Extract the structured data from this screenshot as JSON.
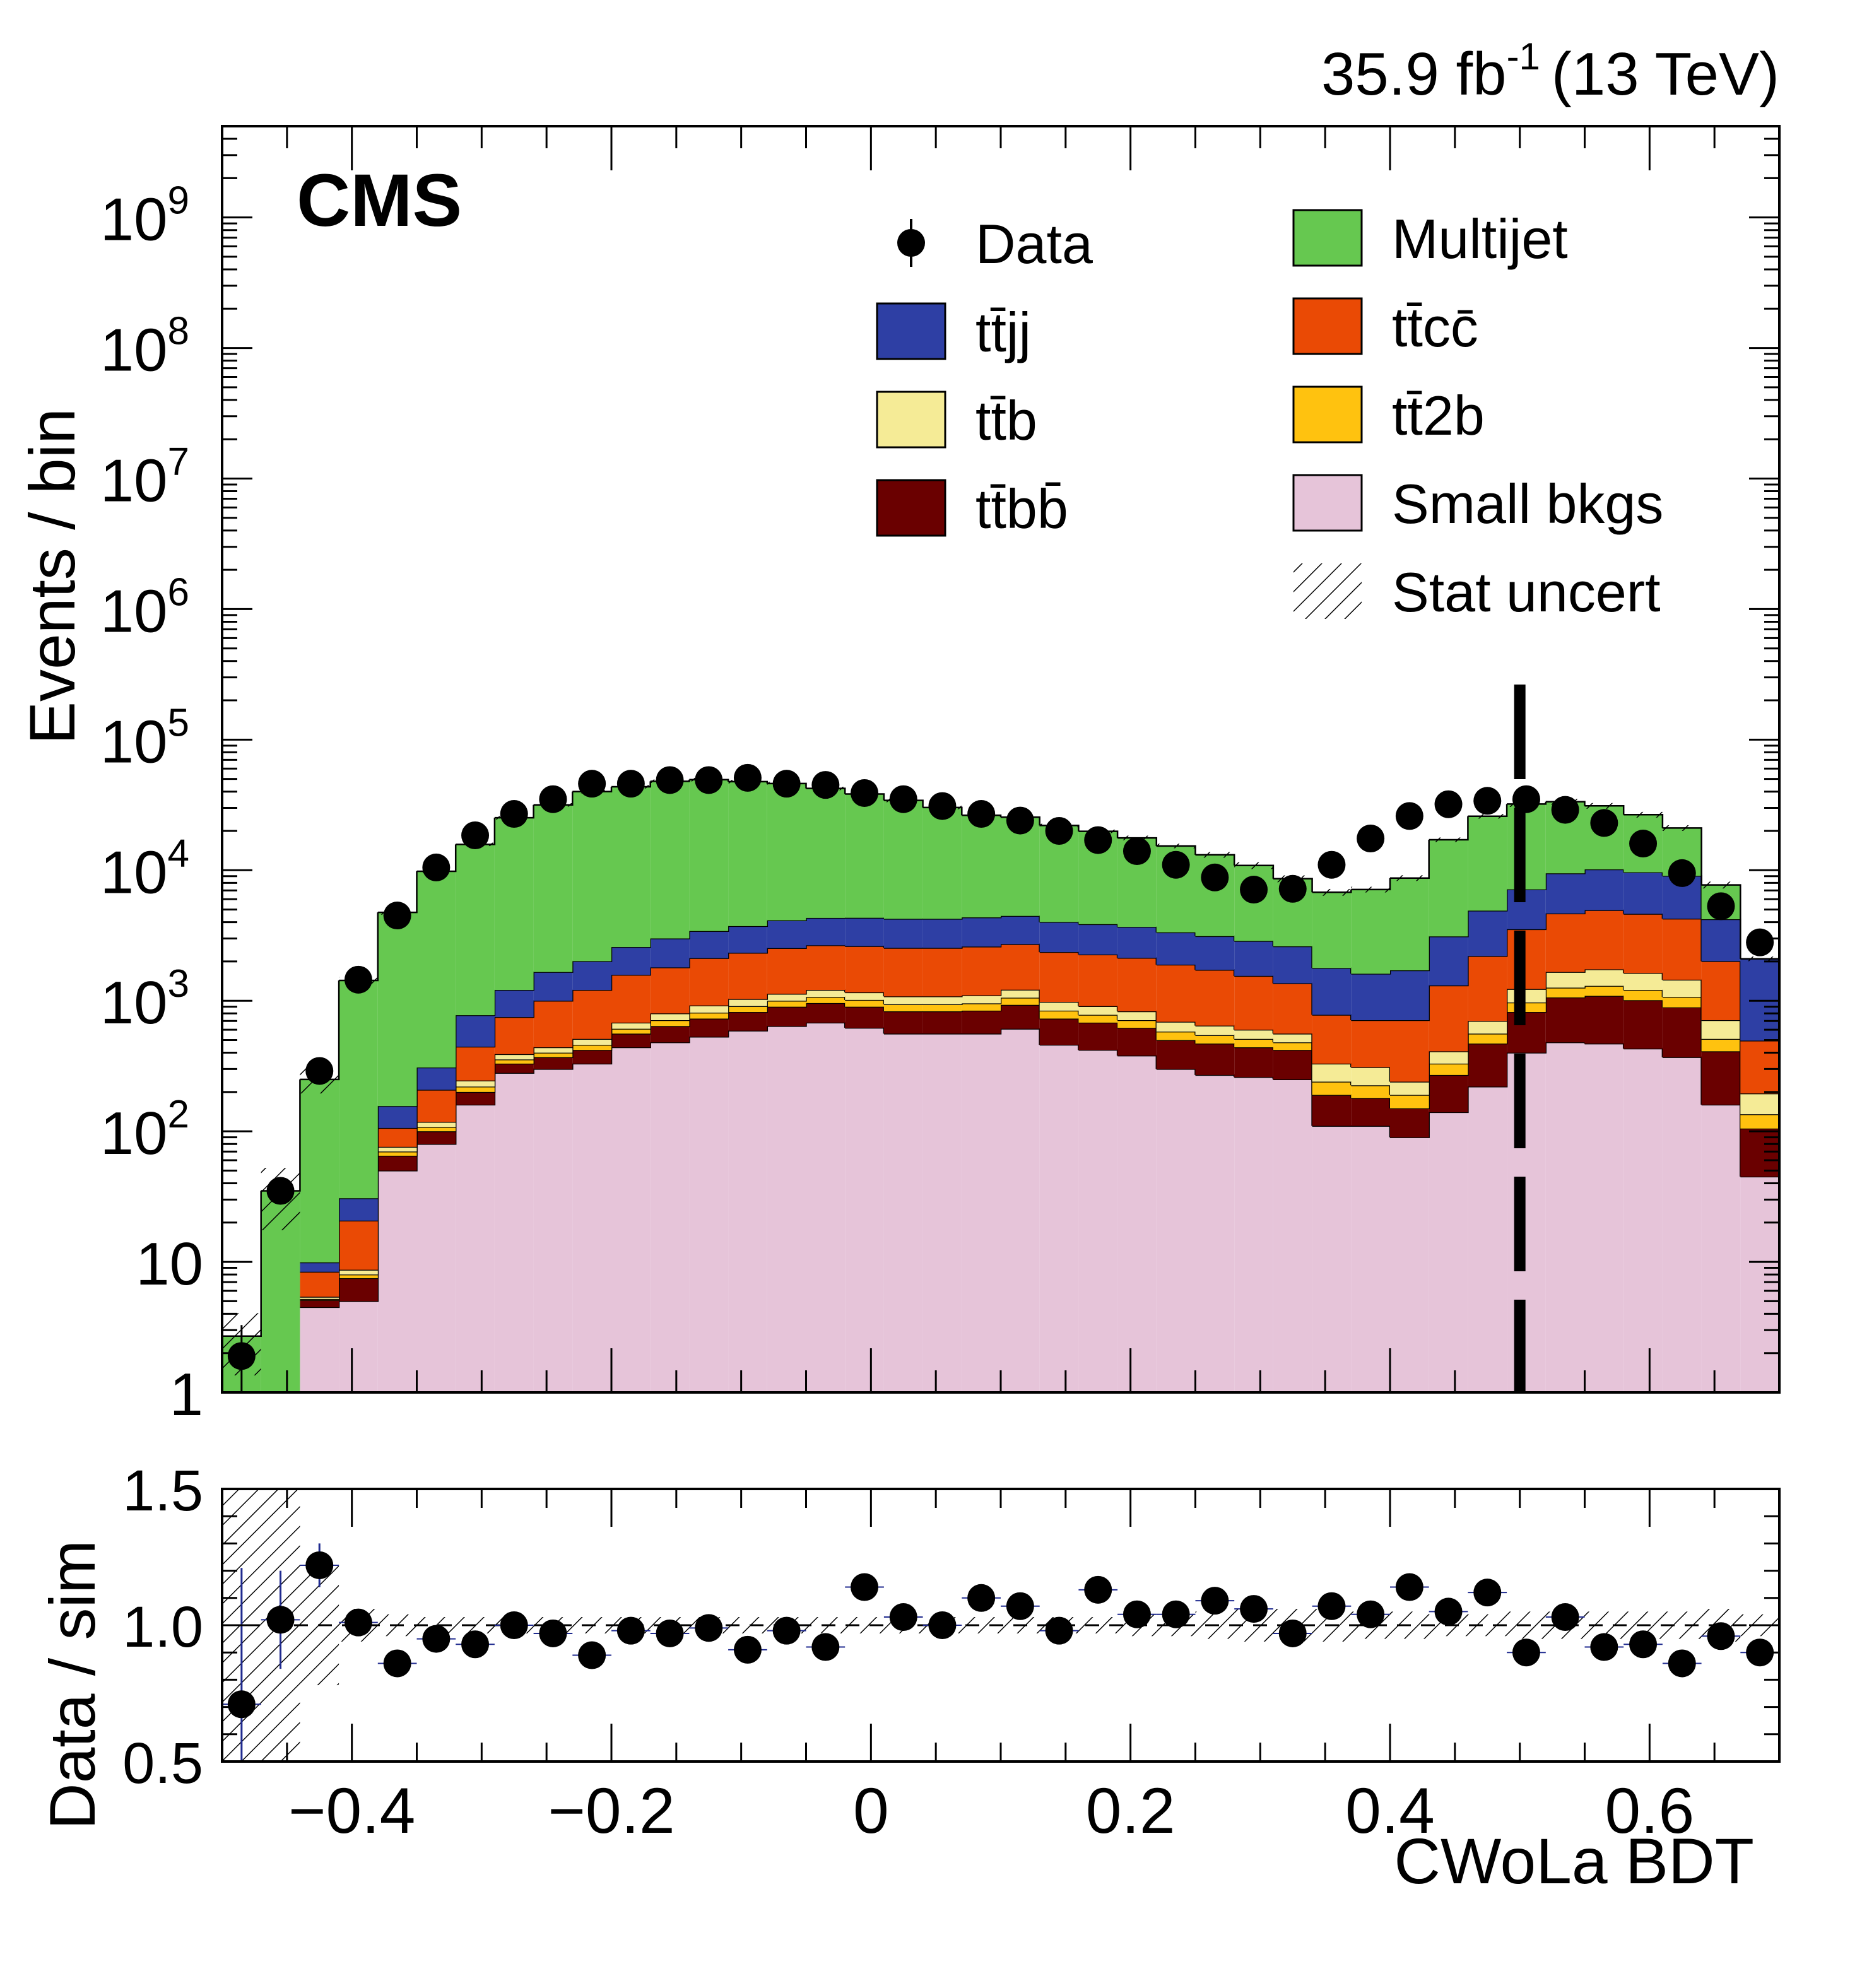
{
  "chart_data": {
    "type": "stacked-histogram-with-ratio",
    "title": "",
    "lumi_label": "35.9 fb",
    "lumi_sup": "-1",
    "energy_label": "(13 TeV)",
    "experiment_label": "CMS",
    "xlabel": "CWoLa BDT",
    "ylabel_main": "Events / bin",
    "ylabel_ratio": "Data / sim",
    "xlim": [
      -0.5,
      0.7
    ],
    "ylim_main": [
      1,
      5000000000
    ],
    "ylim_ratio": [
      0.5,
      1.5
    ],
    "yscale_main": "log",
    "bin_width": 0.03,
    "cut_x": 0.5,
    "x_ticks": [
      {
        "value": -0.4,
        "label": "−0.4"
      },
      {
        "value": -0.2,
        "label": "−0.2"
      },
      {
        "value": 0,
        "label": "0"
      },
      {
        "value": 0.2,
        "label": "0.2"
      },
      {
        "value": 0.4,
        "label": "0.4"
      },
      {
        "value": 0.6,
        "label": "0.6"
      }
    ],
    "y_ticks_main": [
      {
        "value": 1,
        "base": "1",
        "exp": ""
      },
      {
        "value": 10,
        "base": "10",
        "exp": ""
      },
      {
        "value": 100,
        "base": "10",
        "exp": "2"
      },
      {
        "value": 1000,
        "base": "10",
        "exp": "3"
      },
      {
        "value": 10000,
        "base": "10",
        "exp": "4"
      },
      {
        "value": 100000,
        "base": "10",
        "exp": "5"
      },
      {
        "value": 1000000,
        "base": "10",
        "exp": "6"
      },
      {
        "value": 10000000,
        "base": "10",
        "exp": "7"
      },
      {
        "value": 100000000,
        "base": "10",
        "exp": "8"
      },
      {
        "value": 1000000000,
        "base": "10",
        "exp": "9"
      }
    ],
    "y_ticks_ratio": [
      {
        "value": 0.5,
        "label": "0.5"
      },
      {
        "value": 1.0,
        "label": "1.0"
      },
      {
        "value": 1.5,
        "label": "1.5"
      }
    ],
    "bin_edges": [
      -0.5,
      -0.47,
      -0.44,
      -0.41,
      -0.38,
      -0.35,
      -0.32,
      -0.29,
      -0.26,
      -0.23,
      -0.2,
      -0.17,
      -0.14,
      -0.11,
      -0.08,
      -0.05,
      -0.02,
      0.01,
      0.04,
      0.07,
      0.1,
      0.13,
      0.16,
      0.19,
      0.22,
      0.25,
      0.28,
      0.31,
      0.34,
      0.37,
      0.4,
      0.43,
      0.46,
      0.49,
      0.52,
      0.55,
      0.58,
      0.61,
      0.64,
      0.67,
      0.7
    ],
    "stack_order": [
      "small",
      "ttbb",
      "tt2b",
      "ttb",
      "ttcc",
      "ttjj",
      "multijet"
    ],
    "series": [
      {
        "key": "small",
        "name": "Small bkgs",
        "color": "#e6c4d9",
        "values": [
          0,
          0,
          4.5,
          5,
          50,
          80,
          160,
          280,
          300,
          330,
          440,
          480,
          530,
          590,
          640,
          680,
          620,
          560,
          560,
          560,
          610,
          460,
          420,
          380,
          300,
          270,
          260,
          250,
          110,
          110,
          90,
          140,
          220,
          400,
          480,
          470,
          430,
          370,
          160,
          45
        ]
      },
      {
        "key": "ttbb",
        "name": "tt̄bb̄",
        "color": "#6a0000",
        "values": [
          0,
          0,
          0.6,
          2.5,
          15,
          20,
          40,
          50,
          70,
          90,
          120,
          160,
          200,
          230,
          260,
          280,
          280,
          270,
          270,
          280,
          320,
          270,
          260,
          240,
          200,
          200,
          180,
          170,
          80,
          70,
          60,
          130,
          250,
          420,
          580,
          620,
          580,
          520,
          250,
          60
        ]
      },
      {
        "key": "tt2b",
        "name": "tt̄2b",
        "color": "#ffc20f",
        "values": [
          0,
          0,
          0.1,
          0.5,
          5,
          8,
          20,
          25,
          30,
          40,
          50,
          70,
          80,
          90,
          100,
          110,
          115,
          110,
          110,
          115,
          125,
          110,
          100,
          90,
          80,
          75,
          70,
          60,
          50,
          45,
          40,
          60,
          90,
          150,
          200,
          210,
          200,
          180,
          100,
          30
        ]
      },
      {
        "key": "ttb",
        "name": "tt̄b",
        "color": "#f5eb96",
        "values": [
          0,
          0,
          0.2,
          0.7,
          6,
          10,
          25,
          35,
          40,
          50,
          70,
          90,
          110,
          120,
          130,
          140,
          145,
          140,
          140,
          145,
          160,
          140,
          130,
          120,
          110,
          100,
          90,
          80,
          90,
          85,
          50,
          80,
          140,
          260,
          400,
          440,
          420,
          380,
          200,
          60
        ]
      },
      {
        "key": "ttcc",
        "name": "tt̄cc̄",
        "color": "#ea4a05",
        "values": [
          0,
          0,
          3,
          12,
          30,
          90,
          200,
          360,
          560,
          700,
          900,
          1000,
          1200,
          1300,
          1400,
          1450,
          1460,
          1460,
          1460,
          1500,
          1500,
          1380,
          1350,
          1300,
          1200,
          1080,
          950,
          800,
          450,
          400,
          470,
          900,
          1500,
          2300,
          3000,
          3200,
          3000,
          2800,
          1300,
          300
        ]
      },
      {
        "key": "ttjj",
        "name": "tt̄jj",
        "color": "#2e3fa4",
        "values": [
          0,
          0,
          1.5,
          10,
          50,
          100,
          330,
          460,
          660,
          800,
          1000,
          1200,
          1300,
          1400,
          1600,
          1650,
          1700,
          1700,
          1700,
          1750,
          1750,
          1650,
          1600,
          1550,
          1450,
          1400,
          1320,
          1250,
          1000,
          900,
          1000,
          1800,
          2700,
          3600,
          4800,
          5200,
          5000,
          4800,
          2200,
          1600
        ]
      },
      {
        "key": "multijet",
        "name": "Multijet",
        "color": "#66c850",
        "values": [
          2.7,
          35,
          240,
          1400,
          4600,
          9500,
          15000,
          24000,
          30000,
          38000,
          41000,
          45000,
          46000,
          44000,
          42000,
          38000,
          34000,
          30000,
          26000,
          22000,
          21000,
          18000,
          16000,
          14000,
          12000,
          10000,
          8000,
          6000,
          5000,
          5500,
          7000,
          14000,
          21000,
          25000,
          24000,
          21000,
          17000,
          12000,
          3500,
          0
        ]
      }
    ],
    "data": {
      "name": "Data",
      "x": [
        -0.485,
        -0.455,
        -0.425,
        -0.395,
        -0.365,
        -0.335,
        -0.305,
        -0.275,
        -0.245,
        -0.215,
        -0.185,
        -0.155,
        -0.125,
        -0.095,
        -0.065,
        -0.035,
        -0.005,
        0.025,
        0.055,
        0.085,
        0.115,
        0.145,
        0.175,
        0.205,
        0.235,
        0.265,
        0.295,
        0.325,
        0.355,
        0.385,
        0.415,
        0.445,
        0.475,
        0.505,
        0.535,
        0.565,
        0.595,
        0.625,
        0.655,
        0.685
      ],
      "values": [
        1.9,
        35,
        290,
        1450,
        4500,
        10500,
        18500,
        27000,
        35000,
        46000,
        46000,
        49000,
        49000,
        51000,
        46000,
        45000,
        39000,
        35000,
        31000,
        27000,
        24000,
        20000,
        17000,
        14000,
        11000,
        8800,
        7100,
        7200,
        11000,
        17500,
        26000,
        32000,
        34000,
        35000,
        29000,
        23000,
        16000,
        9500,
        5300,
        2800
      ]
    },
    "ratio": {
      "x": [
        -0.485,
        -0.455,
        -0.425,
        -0.395,
        -0.365,
        -0.335,
        -0.305,
        -0.275,
        -0.245,
        -0.215,
        -0.185,
        -0.155,
        -0.125,
        -0.095,
        -0.065,
        -0.035,
        -0.005,
        0.025,
        0.055,
        0.085,
        0.115,
        0.145,
        0.175,
        0.205,
        0.235,
        0.265,
        0.295,
        0.325,
        0.355,
        0.385,
        0.415,
        0.445,
        0.475,
        0.505,
        0.535,
        0.565,
        0.595,
        0.625,
        0.655,
        0.685
      ],
      "values": [
        0.71,
        1.02,
        1.22,
        1.01,
        0.86,
        0.95,
        0.93,
        1.0,
        0.97,
        0.89,
        0.98,
        0.97,
        0.99,
        0.91,
        0.98,
        0.92,
        1.14,
        1.03,
        1.0,
        1.1,
        1.07,
        0.98,
        1.13,
        1.04,
        1.04,
        1.09,
        1.06,
        0.97,
        1.07,
        1.04,
        1.14,
        1.05,
        1.12,
        0.9,
        1.03,
        0.92,
        0.93,
        0.86,
        0.96,
        0.9
      ],
      "errors": [
        0.5,
        0.18,
        0.08,
        0.03,
        0.02,
        0.02,
        0.01,
        0.01,
        0.01,
        0.01,
        0.01,
        0.01,
        0.01,
        0.01,
        0.01,
        0.01,
        0.01,
        0.01,
        0.01,
        0.01,
        0.01,
        0.01,
        0.01,
        0.01,
        0.01,
        0.01,
        0.01,
        0.01,
        0.01,
        0.01,
        0.01,
        0.01,
        0.01,
        0.01,
        0.01,
        0.01,
        0.01,
        0.01,
        0.01,
        0.01
      ],
      "stat_band": [
        0.5,
        0.5,
        0.22,
        0.06,
        0.04,
        0.03,
        0.03,
        0.03,
        0.03,
        0.03,
        0.03,
        0.03,
        0.03,
        0.03,
        0.03,
        0.03,
        0.03,
        0.03,
        0.03,
        0.03,
        0.03,
        0.03,
        0.03,
        0.04,
        0.04,
        0.05,
        0.06,
        0.06,
        0.06,
        0.05,
        0.05,
        0.04,
        0.04,
        0.05,
        0.05,
        0.05,
        0.05,
        0.05,
        0.06,
        0.04
      ]
    },
    "legend": {
      "position": "top-right",
      "entries": [
        {
          "key": "data",
          "label": "Data",
          "style": "marker"
        },
        {
          "key": "multijet",
          "label": "Multijet",
          "style": "box",
          "color": "#66c850"
        },
        {
          "key": "ttjj",
          "label": "tt̄jj",
          "style": "box",
          "color": "#2e3fa4"
        },
        {
          "key": "ttcc",
          "label": "tt̄cc̄",
          "style": "box",
          "color": "#ea4a05"
        },
        {
          "key": "ttb",
          "label": "tt̄b",
          "style": "box",
          "color": "#f5eb96"
        },
        {
          "key": "tt2b",
          "label": "tt̄2b",
          "style": "box",
          "color": "#ffc20f"
        },
        {
          "key": "ttbb",
          "label": "tt̄bb̄",
          "style": "box",
          "color": "#6a0000"
        },
        {
          "key": "small",
          "label": "Small bkgs",
          "style": "box",
          "color": "#e6c4d9"
        },
        {
          "key": "stat",
          "label": "Stat uncert",
          "style": "hatch"
        }
      ]
    }
  }
}
